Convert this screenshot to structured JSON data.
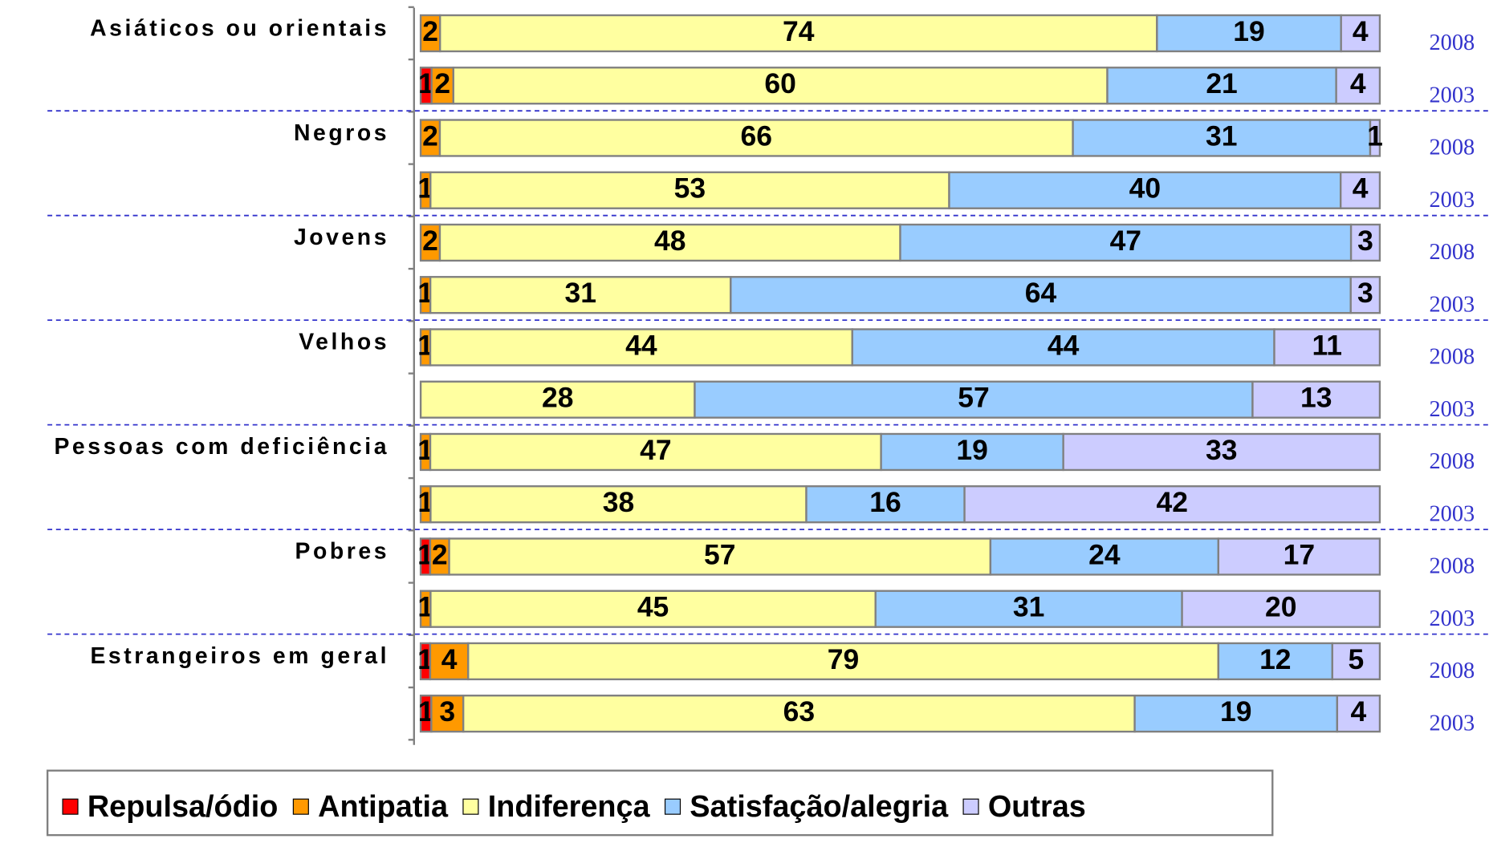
{
  "chart_data": {
    "type": "bar",
    "orientation": "horizontal",
    "stacked": "percent",
    "group_labels": [
      "Asiáticos ou orientais",
      "Negros",
      "Jovens",
      "Velhos",
      "Pessoas com deficiência",
      "Pobres",
      "Estrangeiros em geral"
    ],
    "categories": [
      "2008",
      "2003",
      "2008",
      "2003",
      "2008",
      "2003",
      "2008",
      "2003",
      "2008",
      "2003",
      "2008",
      "2003",
      "2008",
      "2003"
    ],
    "series": [
      {
        "name": "Repulsa/ódio",
        "color": "#ff0000",
        "values": [
          null,
          1,
          null,
          null,
          null,
          null,
          null,
          null,
          null,
          null,
          1,
          null,
          1,
          1
        ]
      },
      {
        "name": "Antipatia",
        "color": "#ff9900",
        "values": [
          2,
          2,
          2,
          1,
          2,
          1,
          1,
          null,
          1,
          1,
          2,
          1,
          4,
          3
        ]
      },
      {
        "name": "Indiferença",
        "color": "#ffffa0",
        "values": [
          74,
          60,
          66,
          53,
          48,
          31,
          44,
          28,
          47,
          38,
          57,
          45,
          79,
          63
        ]
      },
      {
        "name": "Satisfação/alegria",
        "color": "#99ccff",
        "values": [
          19,
          21,
          31,
          40,
          47,
          64,
          44,
          57,
          19,
          16,
          24,
          31,
          12,
          19
        ]
      },
      {
        "name": "Outras",
        "color": "#ccccff",
        "values": [
          4,
          4,
          1,
          4,
          3,
          3,
          11,
          13,
          33,
          42,
          17,
          20,
          5,
          4
        ]
      }
    ]
  }
}
